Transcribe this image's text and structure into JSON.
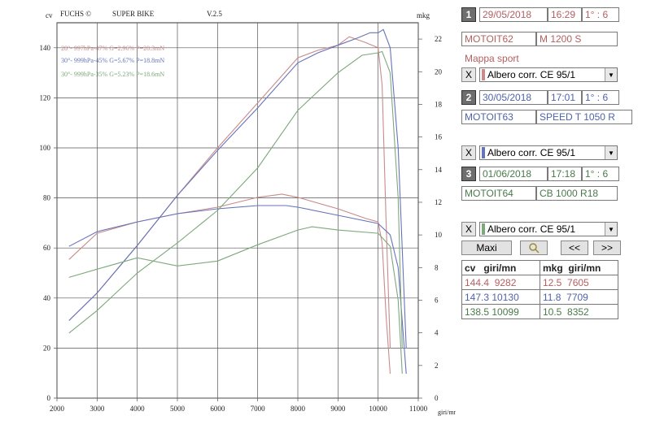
{
  "header": {
    "brand": "FUCHS ©",
    "mode": "SUPER BIKE",
    "version": "V.2.5"
  },
  "chart_data": {
    "type": "line",
    "xlim": [
      2000,
      11000
    ],
    "x_ticks": [
      2000,
      3000,
      4000,
      5000,
      6000,
      7000,
      8000,
      9000,
      10000,
      11000
    ],
    "xlabel": "giri/mn",
    "ylabel": "cv",
    "ylim": [
      0,
      150
    ],
    "y_ticks": [
      0,
      20,
      40,
      60,
      80,
      100,
      120,
      140
    ],
    "y2label": "mkg",
    "y2lim": [
      0,
      23
    ],
    "y2_ticks": [
      0,
      2,
      4,
      6,
      8,
      10,
      12,
      14,
      16,
      18,
      20,
      22
    ],
    "legend": [
      "28°- 997hPa-47% G=2.96% P=20.3mN",
      "30°- 999hPa-45% G=5.67% P=18.8mN",
      "30°- 999hPa-35% G=5.23% P=18.6mN"
    ],
    "grid": true,
    "series": [
      {
        "run": 1,
        "color": "#c98b8b",
        "power": {
          "x": [
            2300,
            3000,
            4000,
            5000,
            6000,
            7000,
            8000,
            8500,
            9000,
            9282,
            9700,
            10000,
            10100,
            10200,
            10300
          ],
          "y": [
            31,
            42,
            61,
            81,
            100,
            118,
            136,
            139,
            141,
            144.4,
            142,
            140,
            125,
            70,
            20
          ]
        },
        "torque": {
          "x": [
            2300,
            3000,
            4000,
            5000,
            6000,
            7000,
            7605,
            8000,
            9000,
            9700,
            10000,
            10100,
            10200,
            10300
          ],
          "y": [
            8.5,
            10.1,
            10.8,
            11.3,
            11.7,
            12.3,
            12.5,
            12.3,
            11.6,
            11.0,
            10.8,
            9.5,
            5.0,
            1.5
          ]
        }
      },
      {
        "run": 2,
        "color": "#6673bb",
        "power": {
          "x": [
            2300,
            3000,
            4000,
            5000,
            6000,
            7000,
            8000,
            8500,
            9000,
            9500,
            9800,
            10000,
            10130,
            10300,
            10500,
            10700
          ],
          "y": [
            31,
            42,
            61,
            81,
            99,
            116,
            134,
            138,
            141,
            144,
            146,
            146,
            147.3,
            140,
            100,
            20
          ]
        },
        "torque": {
          "x": [
            2300,
            3000,
            4000,
            5000,
            6000,
            7000,
            7709,
            8000,
            9000,
            10000,
            10300,
            10500,
            10700
          ],
          "y": [
            9.3,
            10.2,
            10.8,
            11.3,
            11.6,
            11.8,
            11.8,
            11.7,
            11.2,
            10.7,
            10.0,
            8.0,
            1.5
          ]
        }
      },
      {
        "run": 3,
        "color": "#7da87d",
        "power": {
          "x": [
            2300,
            3000,
            4000,
            5000,
            6000,
            7000,
            8000,
            9000,
            9600,
            10000,
            10099,
            10300,
            10500,
            10600
          ],
          "y": [
            26,
            35,
            50,
            62,
            75,
            92,
            115,
            130,
            137,
            138,
            138.5,
            130,
            80,
            20
          ]
        },
        "torque": {
          "x": [
            2300,
            3000,
            4000,
            5000,
            6000,
            7000,
            8000,
            8352,
            9000,
            10000,
            10300,
            10500,
            10600
          ],
          "y": [
            7.4,
            7.9,
            8.6,
            8.1,
            8.4,
            9.4,
            10.3,
            10.5,
            10.3,
            10.1,
            9.3,
            6.0,
            1.5
          ]
        }
      }
    ]
  },
  "runs": [
    {
      "num": "1",
      "date": "29/05/2018",
      "time": "16:29",
      "ratio": "1° : 6",
      "id": "MOTOIT62",
      "model": "M 1200 S",
      "map": "Mappa sport",
      "shaft": "Albero corr. CE 95/1",
      "color": "#c98b8b"
    },
    {
      "num": "2",
      "date": "30/05/2018",
      "time": "17:01",
      "ratio": "1° : 6",
      "id": "MOTOIT63",
      "model": "SPEED T 1050 R",
      "shaft": "Albero corr. CE 95/1",
      "color": "#6673bb"
    },
    {
      "num": "3",
      "date": "01/06/2018",
      "time": "17:18",
      "ratio": "1° : 6",
      "id": "MOTOIT64",
      "model": "CB 1000 R18",
      "shaft": "Albero corr. CE 95/1",
      "color": "#7da87d"
    }
  ],
  "x_label": "X",
  "controls": {
    "maxi": "Maxi",
    "prev": "<<",
    "next": ">>"
  },
  "results": {
    "headers": {
      "cv": "cv",
      "giri1": "giri/mn",
      "mkg": "mkg",
      "giri2": "giri/mn"
    },
    "rows": [
      {
        "cv": "144.4",
        "cv_rpm": "9282",
        "mkg": "12.5",
        "mkg_rpm": "7605"
      },
      {
        "cv": "147.3",
        "cv_rpm": "10130",
        "mkg": "11.8",
        "mkg_rpm": "7709"
      },
      {
        "cv": "138.5",
        "cv_rpm": "10099",
        "mkg": "10.5",
        "mkg_rpm": "8352"
      }
    ]
  }
}
